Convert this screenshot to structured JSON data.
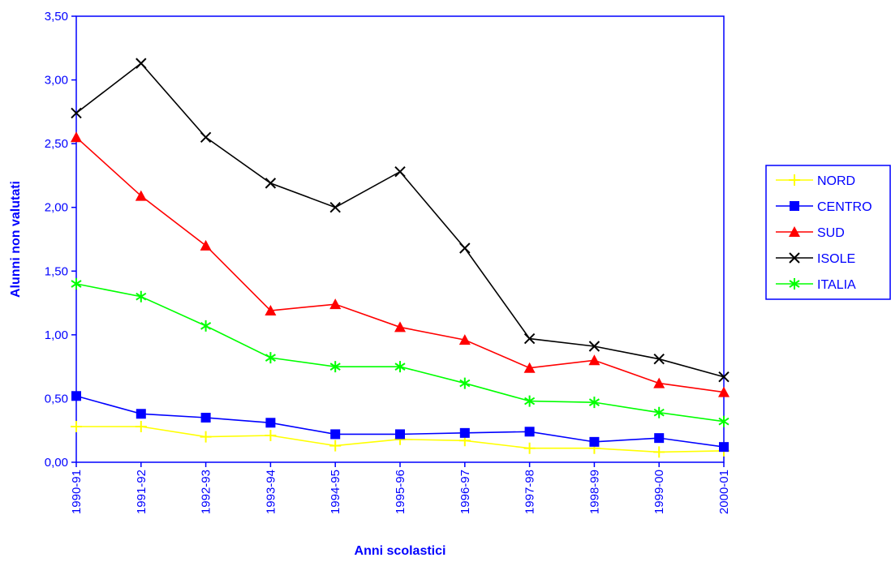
{
  "chart_data": {
    "type": "line",
    "title": "",
    "xlabel": "Anni scolastici",
    "ylabel": "Alunni non valutati",
    "categories": [
      "1990-91",
      "1991-92",
      "1992-93",
      "1993-94",
      "1994-95",
      "1995-96",
      "1996-97",
      "1997-98",
      "1998-99",
      "1999-00",
      "2000-01"
    ],
    "ylim": [
      0,
      3.5
    ],
    "yticks": [
      "0,00",
      "0,50",
      "1,00",
      "1,50",
      "2,00",
      "2,50",
      "3,00",
      "3,50"
    ],
    "grid": false,
    "legend": "right",
    "series": [
      {
        "name": "NORD",
        "color": "#ffff00",
        "marker": "plus",
        "values": [
          0.28,
          0.28,
          0.2,
          0.21,
          0.13,
          0.18,
          0.17,
          0.11,
          0.11,
          0.08,
          0.09
        ]
      },
      {
        "name": "CENTRO",
        "color": "#0000ff",
        "marker": "square",
        "values": [
          0.52,
          0.38,
          0.35,
          0.31,
          0.22,
          0.22,
          0.23,
          0.24,
          0.16,
          0.19,
          0.12
        ]
      },
      {
        "name": "SUD",
        "color": "#ff0000",
        "marker": "triangle",
        "values": [
          2.55,
          2.09,
          1.7,
          1.19,
          1.24,
          1.06,
          0.96,
          0.74,
          0.8,
          0.62,
          0.55
        ]
      },
      {
        "name": "ISOLE",
        "color": "#000000",
        "marker": "x",
        "values": [
          2.74,
          3.13,
          2.55,
          2.19,
          2.0,
          2.28,
          1.68,
          0.97,
          0.91,
          0.81,
          0.67
        ]
      },
      {
        "name": "ITALIA",
        "color": "#00ff00",
        "marker": "asterisk",
        "values": [
          1.4,
          1.3,
          1.07,
          0.82,
          0.75,
          0.75,
          0.62,
          0.48,
          0.47,
          0.39,
          0.32
        ]
      }
    ]
  }
}
